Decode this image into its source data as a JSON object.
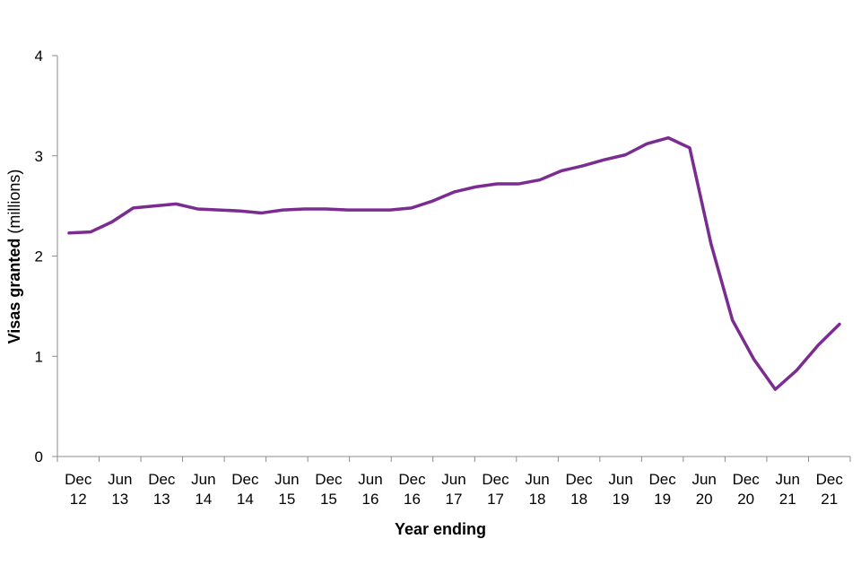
{
  "chart_data": {
    "type": "line",
    "title": "",
    "xlabel": "Year ending",
    "ylabel": {
      "bold": "Visas granted",
      "rest": " (millions)"
    },
    "ylim": [
      0,
      4
    ],
    "yticks": [
      "0",
      "1",
      "2",
      "3",
      "4"
    ],
    "grid": false,
    "legend": "none",
    "line_color": "#7B2C91",
    "x_tick_labels": [
      [
        "Dec",
        "12"
      ],
      [
        "Jun",
        "13"
      ],
      [
        "Dec",
        "13"
      ],
      [
        "Jun",
        "14"
      ],
      [
        "Dec",
        "14"
      ],
      [
        "Jun",
        "15"
      ],
      [
        "Dec",
        "15"
      ],
      [
        "Jun",
        "16"
      ],
      [
        "Dec",
        "16"
      ],
      [
        "Jun",
        "17"
      ],
      [
        "Dec",
        "17"
      ],
      [
        "Jun",
        "18"
      ],
      [
        "Dec",
        "18"
      ],
      [
        "Jun",
        "19"
      ],
      [
        "Dec",
        "19"
      ],
      [
        "Jun",
        "20"
      ],
      [
        "Dec",
        "20"
      ],
      [
        "Jun",
        "21"
      ],
      [
        "Dec",
        "21"
      ]
    ],
    "x": [
      "Dec 12",
      "Mar 13",
      "Jun 13",
      "Sep 13",
      "Dec 13",
      "Mar 14",
      "Jun 14",
      "Sep 14",
      "Dec 14",
      "Mar 15",
      "Jun 15",
      "Sep 15",
      "Dec 15",
      "Mar 16",
      "Jun 16",
      "Sep 16",
      "Dec 16",
      "Mar 17",
      "Jun 17",
      "Sep 17",
      "Dec 17",
      "Mar 18",
      "Jun 18",
      "Sep 18",
      "Dec 18",
      "Mar 19",
      "Jun 19",
      "Sep 19",
      "Dec 19",
      "Mar 20",
      "Jun 20",
      "Sep 20",
      "Dec 20",
      "Mar 21",
      "Jun 21",
      "Sep 21",
      "Dec 21"
    ],
    "series": [
      {
        "values": [
          2.23,
          2.24,
          2.34,
          2.48,
          2.5,
          2.52,
          2.47,
          2.46,
          2.45,
          2.43,
          2.46,
          2.47,
          2.47,
          2.46,
          2.46,
          2.46,
          2.48,
          2.55,
          2.64,
          2.69,
          2.72,
          2.72,
          2.76,
          2.85,
          2.9,
          2.96,
          3.01,
          3.12,
          3.18,
          3.08,
          2.12,
          1.36,
          0.97,
          0.67,
          0.86,
          1.11,
          1.32
        ]
      }
    ]
  }
}
